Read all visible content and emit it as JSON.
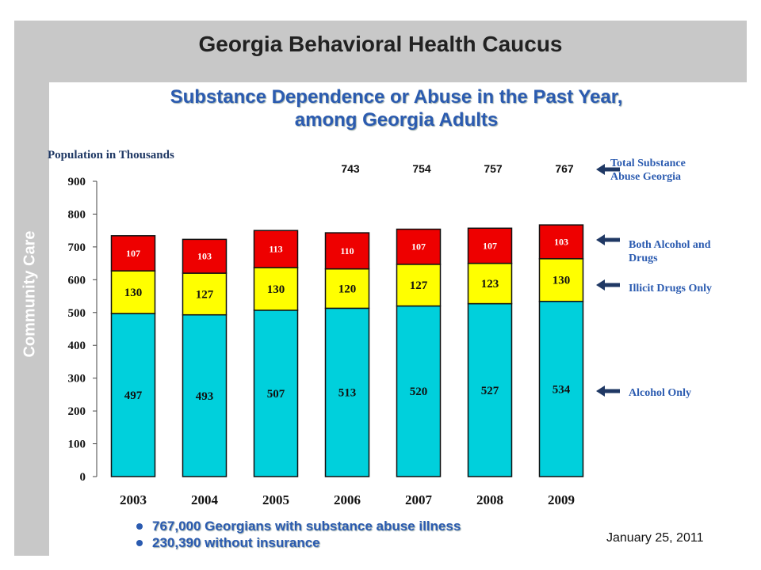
{
  "header": {
    "title": "Georgia Behavioral Health Caucus",
    "side_label": "Community Care"
  },
  "chart_data": {
    "type": "bar",
    "stacked": true,
    "title": "Substance Dependence or Abuse in the Past Year, among Georgia Adults",
    "title_lines": [
      "Substance Dependence or Abuse in the Past Year,",
      "among Georgia Adults"
    ],
    "ylabel": "Population in Thousands",
    "xlabel": "",
    "ylim": [
      0,
      900
    ],
    "yticks": [
      0,
      100,
      200,
      300,
      400,
      500,
      600,
      700,
      800,
      900
    ],
    "categories": [
      "2003",
      "2004",
      "2005",
      "2006",
      "2007",
      "2008",
      "2009"
    ],
    "series": [
      {
        "name": "Alcohol Only",
        "values": [
          497,
          493,
          507,
          513,
          520,
          527,
          534
        ],
        "color": "#00d0dc"
      },
      {
        "name": "Illicit Drugs Only",
        "values": [
          130,
          127,
          130,
          120,
          127,
          123,
          130
        ],
        "color": "#ffff00"
      },
      {
        "name": "Both Alcohol and Drugs",
        "values": [
          107,
          103,
          113,
          110,
          107,
          107,
          103
        ],
        "color": "#ee0000"
      }
    ],
    "totals": {
      "label": "Total Substance Abuse Georgia",
      "categories": [
        "2006",
        "2007",
        "2008",
        "2009"
      ],
      "values": [
        743,
        754,
        757,
        767
      ]
    },
    "grid": false,
    "legend": "right"
  },
  "bullets": [
    "767,000 Georgians with substance abuse illness",
    "230,390 without insurance"
  ],
  "footer": {
    "date": "January 25, 2011"
  },
  "colors": {
    "accent": "#2b5bb0",
    "arrow": "#1f3864",
    "band": "#c8c8c8"
  }
}
